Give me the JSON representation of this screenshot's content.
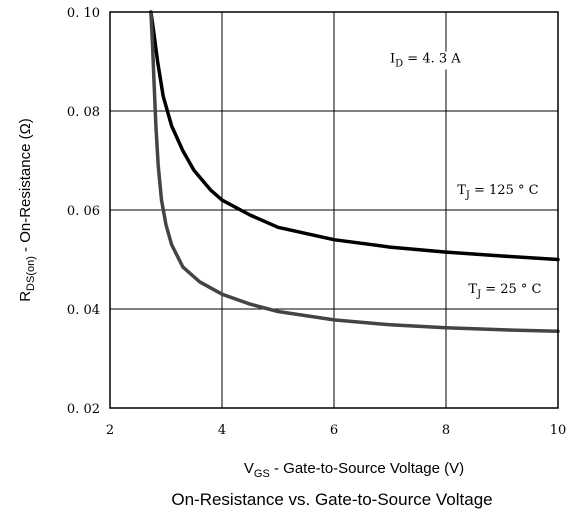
{
  "chart_data": {
    "type": "line",
    "title": "On-Resistance vs. Gate-to-Source Voltage",
    "xlabel": {
      "main": "V",
      "sub": "GS",
      "rest": " - Gate-to-Source Voltage (V)"
    },
    "ylabel": {
      "main": "R",
      "sub": "DS(on)",
      "rest": " - On-Resistance (Ω)"
    },
    "xlim": [
      2,
      10
    ],
    "ylim": [
      0.02,
      0.1
    ],
    "xticks": [
      2,
      4,
      6,
      8,
      10
    ],
    "xtick_labels": [
      "2",
      "4",
      "6",
      "8",
      "10"
    ],
    "yticks": [
      0.02,
      0.04,
      0.06,
      0.08,
      0.1
    ],
    "ytick_labels": [
      "0. 02",
      "0. 04",
      "0. 06",
      "0. 08",
      "0. 10"
    ],
    "grid": true,
    "series": [
      {
        "name": "T_J = 125 ° C",
        "color": "#000000",
        "x": [
          2.73,
          2.78,
          2.85,
          2.95,
          3.1,
          3.3,
          3.5,
          3.8,
          4.0,
          4.5,
          5.0,
          6.0,
          7.0,
          8.0,
          9.0,
          10.0
        ],
        "y": [
          0.1,
          0.096,
          0.09,
          0.083,
          0.077,
          0.072,
          0.068,
          0.064,
          0.062,
          0.059,
          0.0565,
          0.054,
          0.0525,
          0.0515,
          0.0507,
          0.05
        ]
      },
      {
        "name": "T_J = 25 ° C",
        "color": "#444444",
        "x": [
          2.73,
          2.76,
          2.79,
          2.82,
          2.86,
          2.92,
          3.0,
          3.1,
          3.3,
          3.6,
          4.0,
          4.5,
          5.0,
          6.0,
          7.0,
          8.0,
          9.0,
          10.0
        ],
        "y": [
          0.1,
          0.093,
          0.085,
          0.077,
          0.069,
          0.062,
          0.057,
          0.053,
          0.0485,
          0.0455,
          0.043,
          0.041,
          0.0395,
          0.0378,
          0.0368,
          0.0362,
          0.0358,
          0.0355
        ]
      }
    ],
    "annotations": [
      {
        "text": "ID = 4.3 A",
        "main": "I",
        "sub": "D",
        "rest": " = 4. 3 A",
        "x": 7.0,
        "y": 0.0898
      },
      {
        "text": "T_J = 125 ° C",
        "main": "T",
        "sub": "J",
        "rest": " = 125  °  C",
        "x": 8.2,
        "y": 0.0632
      },
      {
        "text": "T_J = 25 ° C",
        "main": "T",
        "sub": "J",
        "rest": " = 25  °  C",
        "x": 8.4,
        "y": 0.0432
      }
    ]
  }
}
